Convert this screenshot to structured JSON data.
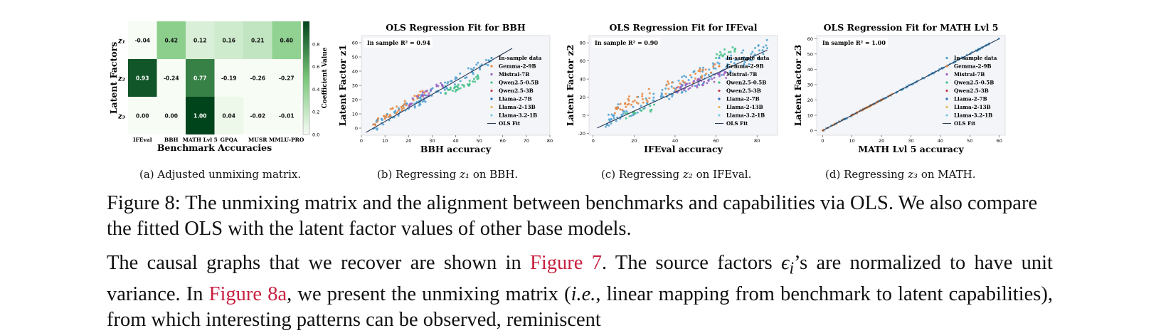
{
  "colors": {
    "scatter_palette": [
      "#4c9fd1",
      "#e8843b",
      "#9b5fc0",
      "#3fbf86",
      "#c13c4a",
      "#2a6fb5",
      "#e7b85b",
      "#7ec8e3"
    ],
    "fit_line": "#2b3a55",
    "plot_bg": "#f3f5f8",
    "link": "#c8203f"
  },
  "heatmap": {
    "rows": [
      "z₁",
      "z₂",
      "z₃"
    ],
    "columns": [
      "IFEval",
      "BBH",
      "MATH Lvl 5",
      "GPQA",
      "MUSR",
      "MMLU-PRO"
    ],
    "values": [
      [
        "-0.04",
        "0.42",
        "0.12",
        "0.16",
        "0.21",
        "0.40"
      ],
      [
        "0.93",
        "-0.24",
        "0.77",
        "-0.19",
        "-0.26",
        "-0.27"
      ],
      [
        "0.00",
        "0.00",
        "1.00",
        "0.04",
        "-0.02",
        "-0.01"
      ]
    ],
    "ylabel": "Latent Factors",
    "xlabel": "Benchmark Accuracies",
    "colorbar_label": "Coefficient Value",
    "colorbar_ticks": [
      "0.8",
      "0.6",
      "0.4",
      "0.2",
      "0.0"
    ]
  },
  "chart_data": [
    {
      "type": "heatmap",
      "title": "",
      "xlabel": "Benchmark Accuracies",
      "ylabel": "Latent Factors",
      "x": [
        "IFEval",
        "BBH",
        "MATH Lvl 5",
        "GPQA",
        "MUSR",
        "MMLU-PRO"
      ],
      "y": [
        "z1",
        "z2",
        "z3"
      ],
      "values": [
        [
          -0.04,
          0.42,
          0.12,
          0.16,
          0.21,
          0.4
        ],
        [
          0.93,
          -0.24,
          0.77,
          -0.19,
          -0.26,
          -0.27
        ],
        [
          0.0,
          0.0,
          1.0,
          0.04,
          -0.02,
          -0.01
        ]
      ],
      "colorbar_range": [
        0.0,
        1.0
      ]
    },
    {
      "type": "scatter",
      "title": "OLS Regression Fit for BBH",
      "xlabel": "BBH accuracy",
      "ylabel": "Latent Factor z1",
      "xlim": [
        0,
        80
      ],
      "ylim": [
        -5,
        65
      ],
      "xticks": [
        "0",
        "10",
        "20",
        "30",
        "40",
        "50",
        "60",
        "70",
        "80"
      ],
      "yticks": [
        "0",
        "10",
        "20",
        "30",
        "40",
        "50",
        "60"
      ],
      "r2_text": "In sample R² = 0.94",
      "fit_line": {
        "x": [
          2,
          64
        ],
        "y": [
          -3,
          56
        ]
      },
      "clusters": [
        {
          "series": 0,
          "cx": [
            5,
            55
          ],
          "cy_slope": 0.95,
          "cy_offset": -4,
          "spread": 3.5,
          "n": 110
        },
        {
          "series": 1,
          "cx": [
            5,
            30
          ],
          "cy_slope": 0.95,
          "cy_offset": -1,
          "spread": 3.0,
          "n": 40
        },
        {
          "series": 2,
          "cx": [
            20,
            35
          ],
          "cy_slope": 0.95,
          "cy_offset": -2,
          "spread": 2.5,
          "n": 30
        },
        {
          "series": 3,
          "cx": [
            35,
            50
          ],
          "cy_slope": 0.75,
          "cy_offset": -2,
          "spread": 2.5,
          "n": 35
        }
      ],
      "legend": [
        "In-sample data",
        "Gemma-2-9B",
        "Mistral-7B",
        "Qwen2.5-0.5B",
        "Qwen2.5-3B",
        "Llama-2-7B",
        "Llama-2-13B",
        "Llama-3.2-1B",
        "OLS Fit"
      ]
    },
    {
      "type": "scatter",
      "title": "OLS Regression Fit for IFEval",
      "xlabel": "IFEval accuracy",
      "ylabel": "Latent Factor z2",
      "xlim": [
        -2,
        90
      ],
      "ylim": [
        -22,
        88
      ],
      "xticks": [
        "0",
        "20",
        "40",
        "60",
        "80"
      ],
      "yticks": [
        "-20",
        "0",
        "20",
        "40",
        "60",
        "80"
      ],
      "r2_text": "In sample R² = 0.90",
      "fit_line": {
        "x": [
          2,
          85
        ],
        "y": [
          -14,
          72
        ]
      },
      "clusters": [
        {
          "series": 0,
          "cx": [
            5,
            85
          ],
          "cy_slope": 1.0,
          "cy_offset": -10,
          "spread": 10,
          "n": 150
        },
        {
          "series": 1,
          "cx": [
            10,
            60
          ],
          "cy_slope": 0.9,
          "cy_offset": -2,
          "spread": 7,
          "n": 60
        },
        {
          "series": 2,
          "cx": [
            40,
            65
          ],
          "cy_slope": 0.8,
          "cy_offset": -6,
          "spread": 5,
          "n": 50
        },
        {
          "series": 3,
          "cx": [
            15,
            30
          ],
          "cy_slope": 0.6,
          "cy_offset": -10,
          "spread": 4,
          "n": 15
        },
        {
          "series": 3,
          "cx": [
            60,
            70
          ],
          "cy_slope": 1.0,
          "cy_offset": 5,
          "spread": 4,
          "n": 15
        }
      ],
      "legend": [
        "In-sample data",
        "Gemma-2-9B",
        "Mistral-7B",
        "Qwen2.5-0.5B",
        "Qwen2.5-3B",
        "Llama-2-7B",
        "Llama-2-13B",
        "Llama-3.2-1B",
        "OLS Fit"
      ]
    },
    {
      "type": "scatter",
      "title": "OLS Regression Fit for MATH Lvl 5",
      "xlabel": "MATH Lvl 5 accuracy",
      "ylabel": "Latent Factor z3",
      "xlim": [
        -2,
        62
      ],
      "ylim": [
        -3,
        62
      ],
      "xticks": [
        "0",
        "10",
        "20",
        "30",
        "40",
        "50",
        "60"
      ],
      "yticks": [
        "0",
        "10",
        "20",
        "30",
        "40",
        "50",
        "60"
      ],
      "r2_text": "In sample R² = 1.00",
      "fit_line": {
        "x": [
          0,
          60
        ],
        "y": [
          0,
          60
        ]
      },
      "clusters": [
        {
          "series": 0,
          "cx": [
            0,
            60
          ],
          "cy_slope": 1.0,
          "cy_offset": 0,
          "spread": 0.4,
          "n": 120
        },
        {
          "series": 1,
          "cx": [
            0,
            25
          ],
          "cy_slope": 1.0,
          "cy_offset": 0,
          "spread": 0.3,
          "n": 40
        }
      ],
      "legend": [
        "In-sample data",
        "Gemma-2-9B",
        "Mistral-7B",
        "Qwen2.5-0.5B",
        "Qwen2.5-3B",
        "Llama-2-7B",
        "Llama-2-13B",
        "Llama-3.2-1B",
        "OLS Fit"
      ]
    }
  ],
  "subcaptions": {
    "a": "(a) Adjusted unmixing matrix.",
    "b_prefix": "(b) Regressing ",
    "b_var": "z₁",
    "b_suffix": " on BBH.",
    "c_prefix": "(c) Regressing ",
    "c_var": "z₂",
    "c_suffix": " on IFEval.",
    "d_prefix": "(d) Regressing ",
    "d_var": "z₃",
    "d_suffix": " on MATH."
  },
  "figure_caption": "Figure 8: The unmixing matrix and the alignment between benchmarks and capabilities via OLS. We also compare the fitted OLS with the latent factor values of other base models.",
  "paragraph": {
    "p1": "The causal graphs that we recover are shown in ",
    "link1": "Figure 7",
    "p2": ". The source factors ",
    "eps": "ϵ",
    "eps_sub": "i",
    "p3": "’s are normalized to have unit variance. In ",
    "link2": "Figure 8a",
    "p4": ", we present the unmixing matrix (",
    "ie": "i.e.",
    "p5": ", linear mapping from benchmark to latent capabilities), from which interesting patterns can be observed, reminiscent"
  }
}
